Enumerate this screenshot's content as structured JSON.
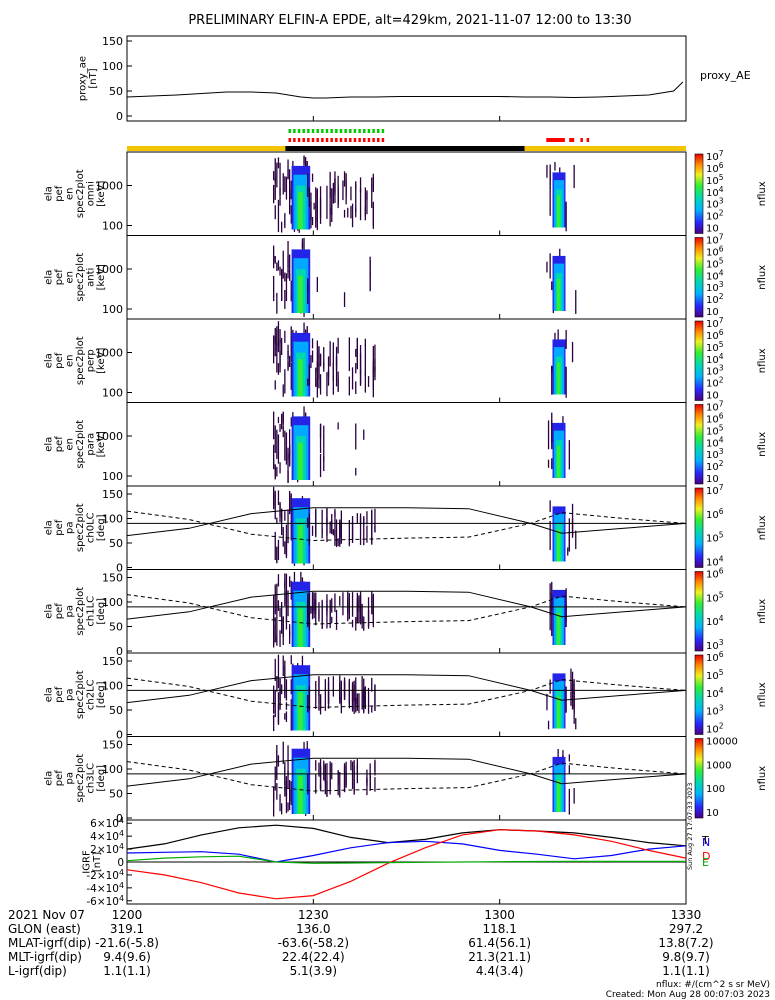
{
  "title": "PRELIMINARY ELFIN-A EPDE, alt=429km, 2021-11-07 12:00 to 13:30",
  "chart_data": [
    {
      "type": "line",
      "panel": "proxy_ae",
      "ylabel_lines": [
        "proxy_ae",
        "[nT]"
      ],
      "right_label": "proxy_AE",
      "yticks": [
        0,
        50,
        100,
        150
      ],
      "ylim": [
        -10,
        160
      ],
      "x_minutes": [
        0,
        4,
        8,
        12,
        16,
        20,
        24,
        28,
        30,
        32,
        36,
        40,
        44,
        48,
        52,
        56,
        60,
        64,
        68,
        72,
        76,
        80,
        84,
        88,
        89.5
      ],
      "values": [
        38,
        40,
        42,
        45,
        48,
        48,
        46,
        38,
        36,
        36,
        38,
        38,
        39,
        39,
        39,
        39,
        39,
        38,
        38,
        37,
        38,
        40,
        42,
        50,
        68
      ]
    },
    {
      "type": "heatmap",
      "panels": [
        {
          "ylabel_lines": [
            "ela",
            "pef",
            "en",
            "spec2plot",
            "omni",
            "[keV]"
          ],
          "yticks": [
            "100",
            "1000"
          ],
          "scale": "log"
        },
        {
          "ylabel_lines": [
            "ela",
            "pef",
            "en",
            "spec2plot",
            "anti",
            "[keV]"
          ],
          "yticks": [
            "100",
            "1000"
          ],
          "scale": "log"
        },
        {
          "ylabel_lines": [
            "ela",
            "pef",
            "en",
            "spec2plot",
            "perp",
            "[keV]"
          ],
          "yticks": [
            "100",
            "1000"
          ],
          "scale": "log"
        },
        {
          "ylabel_lines": [
            "ela",
            "pef",
            "en",
            "spec2plot",
            "para",
            "[keV]"
          ],
          "yticks": [
            "100",
            "1000"
          ],
          "scale": "log"
        },
        {
          "ylabel_lines": [
            "ela",
            "pef",
            "pa",
            "spec2plot",
            "ch0LC",
            "[deg]"
          ],
          "yticks": [
            "0",
            "50",
            "100",
            "150"
          ],
          "scale": "linear"
        },
        {
          "ylabel_lines": [
            "ela",
            "pef",
            "pa",
            "spec2plot",
            "ch1LC",
            "[deg]"
          ],
          "yticks": [
            "0",
            "50",
            "100",
            "150"
          ],
          "scale": "linear"
        },
        {
          "ylabel_lines": [
            "ela",
            "pef",
            "pa",
            "spec2plot",
            "ch2LC",
            "[deg]"
          ],
          "yticks": [
            "0",
            "50",
            "100",
            "150"
          ],
          "scale": "linear"
        },
        {
          "ylabel_lines": [
            "ela",
            "pef",
            "pa",
            "spec2plot",
            "ch3LC",
            "[deg]"
          ],
          "yticks": [
            "0",
            "50",
            "100",
            "150"
          ],
          "scale": "linear"
        }
      ],
      "colorbars": [
        {
          "labels": [
            "10^7",
            "10^6",
            "10^5",
            "10^4",
            "10^3",
            "10^2",
            "10"
          ],
          "unit": "nflux"
        },
        {
          "labels": [
            "10^7",
            "10^6",
            "10^5",
            "10^4",
            "10^3",
            "10^2",
            "10"
          ],
          "unit": "nflux"
        },
        {
          "labels": [
            "10^7",
            "10^6",
            "10^5",
            "10^4",
            "10^3",
            "10^2",
            "10"
          ],
          "unit": "nflux"
        },
        {
          "labels": [
            "10^7",
            "10^6",
            "10^5",
            "10^4",
            "10^3",
            "10^2",
            "10"
          ],
          "unit": "nflux"
        },
        {
          "labels": [
            "10^7",
            "10^6",
            "10^5",
            "10^4"
          ],
          "unit": "nflux"
        },
        {
          "labels": [
            "10^6",
            "10^5",
            "10^4",
            "10^3"
          ],
          "unit": "nflux"
        },
        {
          "labels": [
            "10^6",
            "10^5",
            "10^4",
            "10^3",
            "10^2"
          ],
          "unit": "nflux"
        },
        {
          "labels": [
            "10000",
            "1000",
            "100",
            "10"
          ],
          "unit": "nflux"
        }
      ],
      "data_intervals_minutes": [
        [
          23,
          41
        ],
        [
          67.5,
          72
        ]
      ]
    },
    {
      "type": "line",
      "panel": "igrf",
      "ylabel_lines": [
        "IGRF",
        "[nT]"
      ],
      "yticks": [
        "6×10^4",
        "4×10^4",
        "2×10^4",
        "0",
        "-2×10^4",
        "-4×10^4",
        "-6×10^4"
      ],
      "ylim": [
        -65000,
        65000
      ],
      "x_minutes": [
        0,
        6,
        12,
        18,
        24,
        30,
        36,
        42,
        48,
        54,
        60,
        66,
        72,
        78,
        84,
        90
      ],
      "series": [
        {
          "name": "T",
          "color": "#000000",
          "values": [
            20000,
            28000,
            42000,
            53000,
            57000,
            52000,
            38000,
            30000,
            35000,
            45000,
            50000,
            48000,
            45000,
            38000,
            30000,
            25000
          ]
        },
        {
          "name": "N",
          "color": "#0000ff",
          "values": [
            14000,
            15000,
            16000,
            12000,
            0,
            10000,
            22000,
            30000,
            32000,
            28000,
            18000,
            12000,
            5000,
            10000,
            20000,
            25000
          ]
        },
        {
          "name": "D",
          "color": "#ff0000",
          "values": [
            -12000,
            -20000,
            -32000,
            -48000,
            -57000,
            -52000,
            -30000,
            -2000,
            22000,
            42000,
            50000,
            48000,
            42000,
            32000,
            18000,
            6000
          ]
        },
        {
          "name": "E",
          "color": "#00aa00",
          "values": [
            2000,
            6000,
            8000,
            9000,
            0,
            -2000,
            -1500,
            -1000,
            -500,
            0,
            500,
            800,
            1000,
            1000,
            1000,
            1000
          ]
        }
      ]
    }
  ],
  "time_rows": {
    "header_label": "2021 Nov 07",
    "tick_labels": [
      "1200",
      "1230",
      "1300",
      "1330"
    ],
    "rows": [
      {
        "label": "GLON (east)",
        "values": [
          "319.1",
          "136.0",
          "118.1",
          "297.2"
        ]
      },
      {
        "label": "MLAT-igrf(dip)",
        "values": [
          "-21.6(-5.8)",
          "-63.6(-58.2)",
          "61.4(56.1)",
          "13.8(7.2)"
        ]
      },
      {
        "label": "MLT-igrf(dip)",
        "values": [
          "9.4(9.6)",
          "22.4(22.4)",
          "21.3(21.1)",
          "9.8(9.7)"
        ]
      },
      {
        "label": "L-igrf(dip)",
        "values": [
          "1.1(1.1)",
          "5.1(3.9)",
          "4.4(3.4)",
          "1.1(1.1)"
        ]
      }
    ]
  },
  "footer": {
    "units": "nflux: #/(cm^2 s sr MeV)",
    "created": "Created: Mon Aug 28 00:07:03 2023",
    "side_stamp": "Sun Aug 27 17:07:33 2023"
  },
  "colors": {
    "sunlit": "#f3c400",
    "eclipse": "#000000",
    "green_marker": "#00cc00",
    "red_marker": "#ff0000"
  }
}
